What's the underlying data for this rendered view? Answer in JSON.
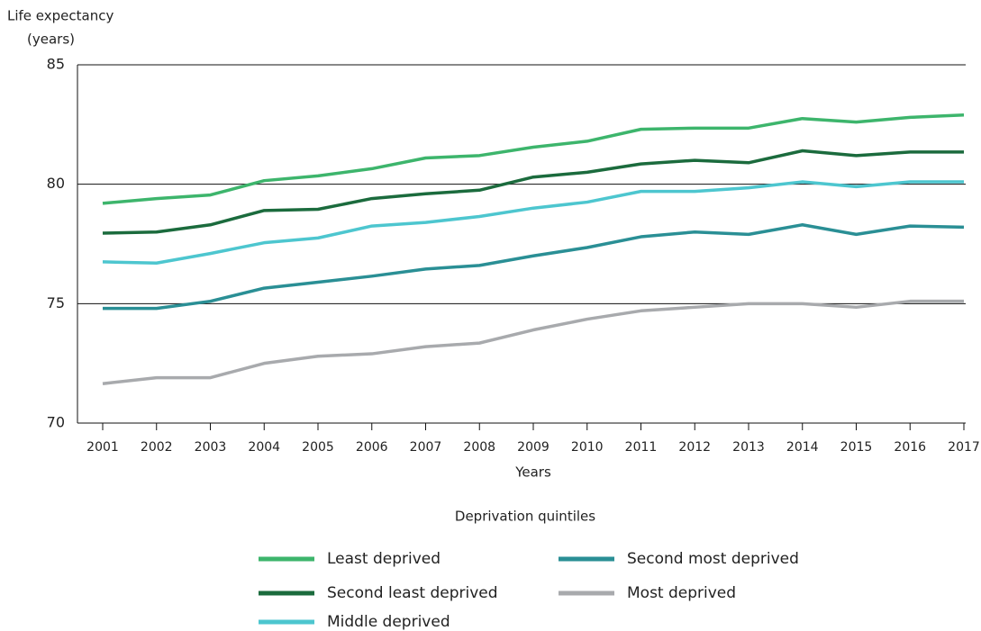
{
  "chart_data": {
    "type": "line",
    "ylabel": [
      "Life expectancy",
      "(years)"
    ],
    "xlabel": "Years",
    "legend_title": "Deprivation quintiles",
    "categories": [
      "2001",
      "2002",
      "2003",
      "2004",
      "2005",
      "2006",
      "2007",
      "2008",
      "2009",
      "2010",
      "2011",
      "2012",
      "2013",
      "2014",
      "2015",
      "2016",
      "2017"
    ],
    "ylim": [
      70,
      85
    ],
    "yticks": [
      70,
      75,
      80,
      85
    ],
    "grid": true,
    "series": [
      {
        "name": "Least deprived",
        "color": "#3db56c",
        "values": [
          79.2,
          79.4,
          79.55,
          80.15,
          80.35,
          80.65,
          81.1,
          81.2,
          81.55,
          81.8,
          82.3,
          82.35,
          82.35,
          82.75,
          82.6,
          82.8,
          82.9
        ]
      },
      {
        "name": "Second least deprived",
        "color": "#1b6b3d",
        "values": [
          77.95,
          78.0,
          78.3,
          78.9,
          78.95,
          79.4,
          79.6,
          79.75,
          80.3,
          80.5,
          80.85,
          81.0,
          80.9,
          81.4,
          81.2,
          81.35,
          81.35
        ]
      },
      {
        "name": "Middle deprived",
        "color": "#4dc6cf",
        "values": [
          76.75,
          76.7,
          77.1,
          77.55,
          77.75,
          78.25,
          78.4,
          78.65,
          79.0,
          79.25,
          79.7,
          79.7,
          79.85,
          80.1,
          79.9,
          80.1,
          80.1
        ]
      },
      {
        "name": "Second most deprived",
        "color": "#2a8f95",
        "values": [
          74.8,
          74.8,
          75.1,
          75.65,
          75.9,
          76.15,
          76.45,
          76.6,
          77.0,
          77.35,
          77.8,
          78.0,
          77.9,
          78.3,
          77.9,
          78.25,
          78.2
        ]
      },
      {
        "name": "Most deprived",
        "color": "#a8aaad",
        "values": [
          71.65,
          71.9,
          71.9,
          72.5,
          72.8,
          72.9,
          73.2,
          73.35,
          73.9,
          74.35,
          74.7,
          74.85,
          75.0,
          75.0,
          74.85,
          75.1,
          75.1
        ]
      }
    ]
  }
}
